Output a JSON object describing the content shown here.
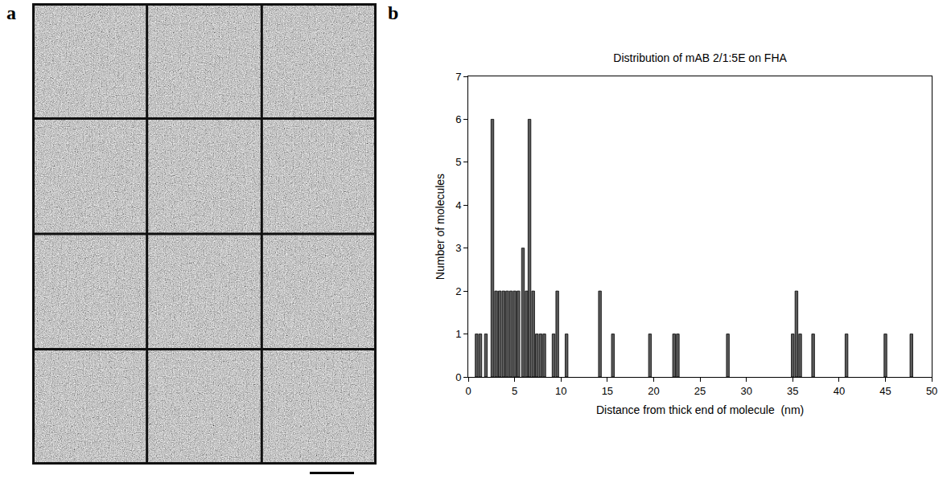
{
  "panel_labels": [
    "a",
    "b"
  ],
  "micrograph_grid": {
    "rows": 4,
    "columns": 3
  },
  "chart_data": {
    "type": "bar",
    "title": "Distribution of mAB 2/1:5E on FHA",
    "x_label": "Distance from thick end of molecule  (nm)",
    "y_label": "Number of molecules",
    "x": [
      0.9,
      1.3,
      1.9,
      2.6,
      3.0,
      3.4,
      3.8,
      4.2,
      4.6,
      5.0,
      5.4,
      5.9,
      6.3,
      6.6,
      7.0,
      7.4,
      7.8,
      8.2,
      9.2,
      9.6,
      10.6,
      14.2,
      15.6,
      19.6,
      22.2,
      22.6,
      28.0,
      35.0,
      35.4,
      35.8,
      37.2,
      40.8,
      45.0,
      47.8
    ],
    "values": [
      1,
      1,
      1,
      6,
      2,
      2,
      2,
      2,
      2,
      2,
      2,
      3,
      2,
      6,
      2,
      1,
      1,
      1,
      1,
      2,
      1,
      2,
      1,
      1,
      1,
      1,
      1,
      1,
      2,
      1,
      1,
      1,
      1,
      1
    ],
    "color": "#5a5a5a",
    "xlim": [
      0,
      50
    ],
    "xticks": [
      0,
      5,
      10,
      15,
      20,
      25,
      30,
      35,
      40,
      45,
      50
    ],
    "ylim": [
      0,
      7
    ],
    "yticks": [
      0,
      1,
      2,
      3,
      4,
      5,
      6,
      7
    ],
    "grid": false
  }
}
